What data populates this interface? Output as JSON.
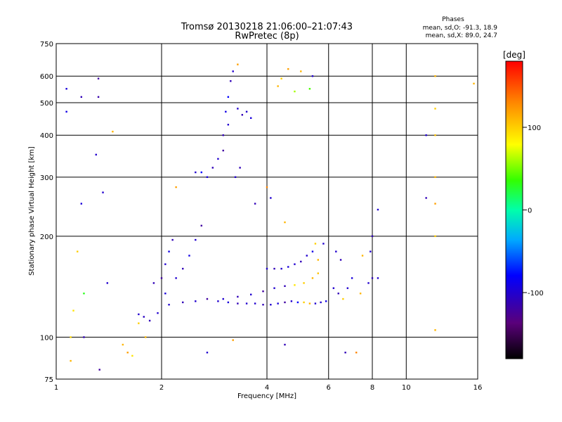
{
  "header": {
    "title_line1": "Tromsø 20130218 21:06:00–21:07:43",
    "title_line2": "RwPretec (8p)"
  },
  "stats": {
    "heading": "Phases",
    "line1": "mean, sd,O: -91.3, 18.9",
    "line2": "mean, sd,X: 89.0, 24.7"
  },
  "colorbar": {
    "label": "[deg]",
    "ticks": [
      {
        "value": 100,
        "label": "100"
      },
      {
        "value": 0,
        "label": "0"
      },
      {
        "value": -100,
        "label": "-100"
      }
    ],
    "range": [
      -180,
      180
    ]
  },
  "chart_data": {
    "type": "scatter",
    "xlabel": "Frequency [MHz]",
    "ylabel": "Stationary phase Virtual Height [km]",
    "xscale": "log",
    "yscale": "log",
    "xlim": [
      1,
      16
    ],
    "ylim": [
      75,
      750
    ],
    "xticks": [
      {
        "value": 1,
        "label": "1"
      },
      {
        "value": 2,
        "label": "2"
      },
      {
        "value": 4,
        "label": "4"
      },
      {
        "value": 6,
        "label": "6"
      },
      {
        "value": 8,
        "label": "8"
      },
      {
        "value": 10,
        "label": "10"
      },
      {
        "value": 16,
        "label": "16"
      }
    ],
    "yticks": [
      {
        "value": 75,
        "label": "75"
      },
      {
        "value": 100,
        "label": "100"
      },
      {
        "value": 200,
        "label": "200"
      },
      {
        "value": 300,
        "label": "300"
      },
      {
        "value": 400,
        "label": "400"
      },
      {
        "value": 500,
        "label": "500"
      },
      {
        "value": 600,
        "label": "600"
      },
      {
        "value": 750,
        "label": "750"
      }
    ],
    "grid": true,
    "colored_by": "phase [deg]",
    "points": [
      [
        1.07,
        550,
        -95
      ],
      [
        1.07,
        470,
        -90
      ],
      [
        1.18,
        520,
        -110
      ],
      [
        1.32,
        590,
        -120
      ],
      [
        1.32,
        520,
        -115
      ],
      [
        1.45,
        410,
        110
      ],
      [
        1.36,
        270,
        -100
      ],
      [
        1.18,
        250,
        -95
      ],
      [
        1.3,
        350,
        -100
      ],
      [
        1.15,
        180,
        100
      ],
      [
        1.12,
        120,
        90
      ],
      [
        1.1,
        100,
        95
      ],
      [
        1.1,
        85,
        110
      ],
      [
        1.2,
        100,
        -110
      ],
      [
        1.33,
        80,
        -120
      ],
      [
        1.2,
        135,
        30
      ],
      [
        1.4,
        145,
        -100
      ],
      [
        1.55,
        95,
        110
      ],
      [
        1.6,
        90,
        120
      ],
      [
        1.65,
        88,
        90
      ],
      [
        1.72,
        117,
        -100
      ],
      [
        1.78,
        115,
        -105
      ],
      [
        1.85,
        112,
        -110
      ],
      [
        1.95,
        118,
        -100
      ],
      [
        1.9,
        145,
        -110
      ],
      [
        2.0,
        150,
        -120
      ],
      [
        2.05,
        165,
        -100
      ],
      [
        2.1,
        180,
        -90
      ],
      [
        2.15,
        195,
        -110
      ],
      [
        2.05,
        135,
        -95
      ],
      [
        2.2,
        150,
        -100
      ],
      [
        2.3,
        160,
        -110
      ],
      [
        2.4,
        175,
        -90
      ],
      [
        2.5,
        195,
        -100
      ],
      [
        2.6,
        215,
        -120
      ],
      [
        2.5,
        310,
        -100
      ],
      [
        2.6,
        310,
        -80
      ],
      [
        2.7,
        300,
        -95
      ],
      [
        2.8,
        320,
        -110
      ],
      [
        2.9,
        340,
        -100
      ],
      [
        3.0,
        360,
        -120
      ],
      [
        3.0,
        400,
        -110
      ],
      [
        3.1,
        430,
        -100
      ],
      [
        3.05,
        470,
        -90
      ],
      [
        3.1,
        520,
        -80
      ],
      [
        3.15,
        580,
        -110
      ],
      [
        3.2,
        620,
        -100
      ],
      [
        3.3,
        650,
        120
      ],
      [
        3.3,
        480,
        -100
      ],
      [
        3.4,
        460,
        -110
      ],
      [
        3.5,
        470,
        -100
      ],
      [
        3.6,
        450,
        -95
      ],
      [
        3.25,
        300,
        -100
      ],
      [
        3.35,
        320,
        -110
      ],
      [
        2.1,
        125,
        -100
      ],
      [
        2.3,
        127,
        -110
      ],
      [
        2.5,
        128,
        -100
      ],
      [
        2.7,
        130,
        -120
      ],
      [
        2.9,
        128,
        -100
      ],
      [
        3.1,
        127,
        -95
      ],
      [
        3.3,
        126,
        -110
      ],
      [
        3.5,
        126,
        -100
      ],
      [
        3.7,
        126,
        -100
      ],
      [
        3.9,
        125,
        -110
      ],
      [
        4.1,
        125,
        -100
      ],
      [
        4.3,
        126,
        -95
      ],
      [
        4.5,
        127,
        -120
      ],
      [
        4.7,
        128,
        -100
      ],
      [
        4.9,
        127,
        -80
      ],
      [
        5.1,
        127,
        100
      ],
      [
        5.3,
        126,
        110
      ],
      [
        5.5,
        126,
        -100
      ],
      [
        5.7,
        127,
        -100
      ],
      [
        5.9,
        128,
        -90
      ],
      [
        3.0,
        130,
        -100
      ],
      [
        3.3,
        132,
        -110
      ],
      [
        3.6,
        134,
        -100
      ],
      [
        3.9,
        137,
        -120
      ],
      [
        4.2,
        140,
        -100
      ],
      [
        4.5,
        142,
        -110
      ],
      [
        4.8,
        143,
        90
      ],
      [
        5.1,
        145,
        100
      ],
      [
        5.4,
        150,
        110
      ],
      [
        5.6,
        155,
        105
      ],
      [
        4.0,
        160,
        -100
      ],
      [
        4.2,
        160,
        -110
      ],
      [
        4.4,
        160,
        -100
      ],
      [
        4.6,
        162,
        -95
      ],
      [
        4.8,
        165,
        -100
      ],
      [
        5.0,
        168,
        -110
      ],
      [
        5.2,
        175,
        -100
      ],
      [
        5.4,
        180,
        -90
      ],
      [
        5.5,
        190,
        100
      ],
      [
        5.6,
        170,
        110
      ],
      [
        6.2,
        140,
        -100
      ],
      [
        6.4,
        135,
        -110
      ],
      [
        6.6,
        130,
        100
      ],
      [
        6.8,
        140,
        -100
      ],
      [
        7.0,
        150,
        -95
      ],
      [
        7.4,
        135,
        110
      ],
      [
        7.8,
        145,
        -100
      ],
      [
        8.0,
        150,
        -110
      ],
      [
        8.3,
        150,
        -100
      ],
      [
        6.3,
        180,
        -100
      ],
      [
        6.5,
        170,
        -110
      ],
      [
        7.5,
        175,
        110
      ],
      [
        7.9,
        180,
        -100
      ],
      [
        8.3,
        240,
        -100
      ],
      [
        8.0,
        200,
        -110
      ],
      [
        4.3,
        560,
        110
      ],
      [
        4.4,
        590,
        100
      ],
      [
        4.6,
        630,
        120
      ],
      [
        5.0,
        620,
        110
      ],
      [
        5.4,
        600,
        -100
      ],
      [
        4.8,
        540,
        60
      ],
      [
        5.3,
        550,
        40
      ],
      [
        4.0,
        280,
        130
      ],
      [
        4.1,
        260,
        -100
      ],
      [
        4.5,
        220,
        110
      ],
      [
        12.1,
        600,
        110
      ],
      [
        12.1,
        480,
        100
      ],
      [
        12.1,
        400,
        105
      ],
      [
        12.1,
        300,
        110
      ],
      [
        12.1,
        250,
        120
      ],
      [
        12.1,
        200,
        100
      ],
      [
        12.1,
        105,
        110
      ],
      [
        11.4,
        400,
        -100
      ],
      [
        11.4,
        260,
        -110
      ],
      [
        15.6,
        570,
        110
      ],
      [
        6.7,
        90,
        -110
      ],
      [
        7.2,
        90,
        130
      ],
      [
        2.7,
        90,
        -100
      ],
      [
        4.5,
        95,
        -110
      ],
      [
        3.2,
        98,
        120
      ],
      [
        1.72,
        110,
        100
      ],
      [
        1.8,
        100,
        110
      ],
      [
        2.2,
        280,
        120
      ],
      [
        3.7,
        250,
        -110
      ],
      [
        5.8,
        190,
        -100
      ]
    ]
  }
}
